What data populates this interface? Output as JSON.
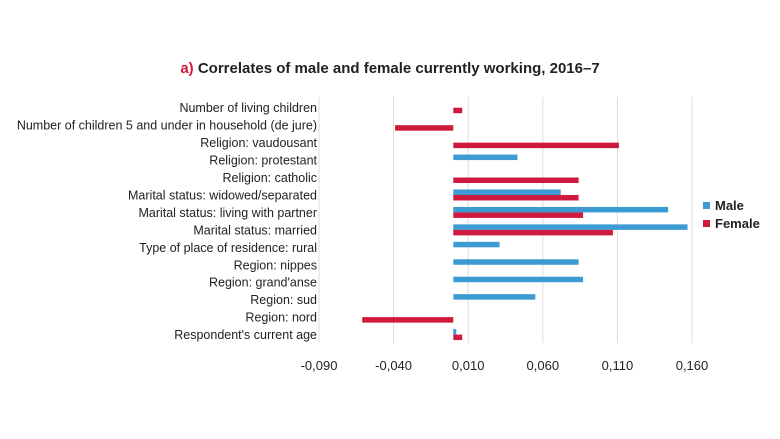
{
  "chart_data": {
    "type": "bar",
    "orientation": "horizontal",
    "title_prefix": "a)",
    "title": "Correlates of male and female currently working, 2016–7",
    "categories": [
      "Number of living children",
      "Number of children 5 and under in household (de jure)",
      "Religion: vaudousant",
      "Religion: protestant",
      "Religion: catholic",
      "Marital status: widowed/separated",
      "Marital status: living with partner",
      "Marital status: married",
      "Type of place of residence: rural",
      "Region: nippes",
      "Region: grand'anse",
      "Region: sud",
      "Region: nord",
      "Respondent's current age"
    ],
    "series": [
      {
        "name": "Male",
        "color": "#3d9bd4",
        "values": [
          null,
          null,
          null,
          0.043,
          null,
          0.072,
          0.144,
          0.157,
          0.031,
          0.084,
          0.087,
          0.055,
          null,
          0.002
        ]
      },
      {
        "name": "Female",
        "color": "#d0193e",
        "values": [
          0.006,
          -0.039,
          0.111,
          null,
          0.084,
          0.084,
          0.087,
          0.107,
          null,
          null,
          null,
          null,
          -0.061,
          0.006
        ]
      }
    ],
    "xticks": [
      "-0,090",
      "-0,040",
      "0,010",
      "0,060",
      "0,110",
      "0,160"
    ],
    "xtick_values": [
      -0.09,
      -0.04,
      0.01,
      0.06,
      0.11,
      0.16
    ],
    "xlim": [
      -0.09,
      0.16
    ],
    "grid": "vertical",
    "legend_position": "right"
  }
}
